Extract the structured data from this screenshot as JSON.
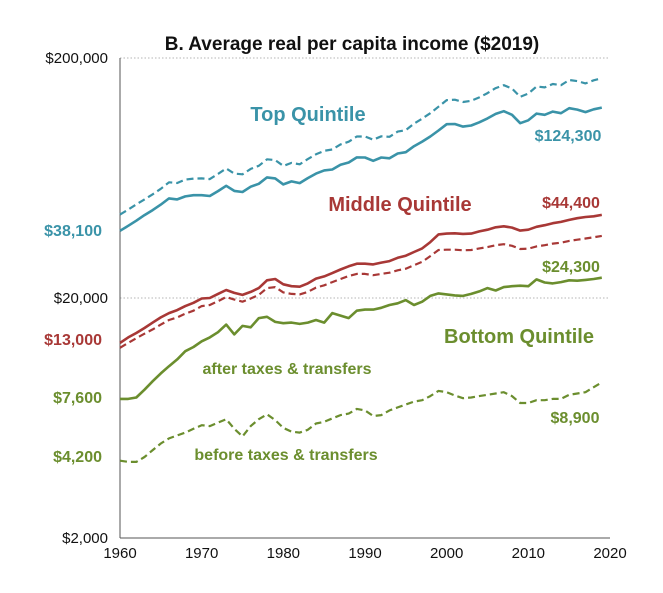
{
  "chart_data": {
    "type": "line",
    "title": "B. Average real per capita income ($2019)",
    "xlabel": "",
    "ylabel": "",
    "y_scale": "log",
    "xlim": [
      1960,
      2020
    ],
    "ylim": [
      2000,
      200000
    ],
    "x_ticks": [
      1960,
      1970,
      1980,
      1990,
      2000,
      2010,
      2020
    ],
    "x_tick_labels": [
      "1960",
      "1970",
      "1980",
      "1990",
      "2000",
      "2010",
      "2020"
    ],
    "y_ticks": [
      2000,
      20000,
      200000
    ],
    "y_tick_labels": [
      "$2,000",
      "$20,000",
      "$200,000"
    ],
    "colors": {
      "top": "#3a93a8",
      "middle": "#a83836",
      "bottom": "#6b8e2e"
    },
    "x": [
      1960,
      1961,
      1962,
      1963,
      1964,
      1965,
      1966,
      1967,
      1968,
      1969,
      1970,
      1971,
      1972,
      1973,
      1974,
      1975,
      1976,
      1977,
      1978,
      1979,
      1980,
      1981,
      1982,
      1983,
      1984,
      1985,
      1986,
      1987,
      1988,
      1989,
      1990,
      1991,
      1992,
      1993,
      1994,
      1995,
      1996,
      1997,
      1998,
      1999,
      2000,
      2001,
      2002,
      2003,
      2004,
      2005,
      2006,
      2007,
      2008,
      2009,
      2010,
      2011,
      2012,
      2013,
      2014,
      2015,
      2016,
      2017,
      2018,
      2019
    ],
    "series": [
      {
        "name": "Top Quintile after taxes & transfers",
        "group": "top",
        "style": "solid",
        "values": [
          38100,
          40000,
          42000,
          44300,
          46500,
          49000,
          52000,
          51500,
          53000,
          53600,
          53600,
          53200,
          55800,
          58700,
          55900,
          55300,
          58200,
          59800,
          63600,
          63000,
          59500,
          61200,
          60200,
          63200,
          66000,
          68000,
          68600,
          71800,
          73400,
          77100,
          77000,
          74600,
          77000,
          76400,
          80000,
          81000,
          85800,
          89700,
          94200,
          99800,
          106000,
          106200,
          103600,
          104700,
          107900,
          112000,
          117000,
          120000,
          116000,
          107000,
          110000,
          117300,
          116000,
          119600,
          117800,
          123500,
          121900,
          119000,
          122300,
          124300
        ]
      },
      {
        "name": "Top Quintile before taxes & transfers",
        "group": "top",
        "style": "dashed",
        "values": [
          44500,
          46700,
          49100,
          51500,
          54100,
          57000,
          60700,
          60300,
          62300,
          62900,
          63000,
          62600,
          65800,
          69300,
          66000,
          65500,
          69000,
          71100,
          75700,
          75100,
          71000,
          73100,
          72100,
          75800,
          79400,
          82100,
          83100,
          87300,
          89600,
          94200,
          94200,
          91300,
          94400,
          93900,
          98700,
          100100,
          106500,
          111800,
          117800,
          125300,
          133600,
          134100,
          131100,
          132600,
          137000,
          142800,
          149800,
          154100,
          149300,
          137900,
          142200,
          152100,
          150900,
          155900,
          154000,
          161900,
          160200,
          156700,
          161500,
          164600
        ]
      },
      {
        "name": "Middle Quintile after taxes & transfers",
        "group": "middle",
        "style": "solid",
        "values": [
          13000,
          13700,
          14300,
          15000,
          15800,
          16600,
          17300,
          17800,
          18500,
          19100,
          19900,
          20000,
          20800,
          21600,
          21000,
          20600,
          21200,
          22000,
          23700,
          24000,
          22800,
          22400,
          22300,
          23000,
          24100,
          24600,
          25400,
          26300,
          27100,
          27800,
          27800,
          27600,
          28100,
          28500,
          29400,
          30000,
          31100,
          32200,
          34200,
          36800,
          37100,
          37200,
          37000,
          37100,
          37900,
          38500,
          39400,
          39800,
          39300,
          38200,
          38500,
          39600,
          40200,
          41000,
          41500,
          42300,
          43000,
          43500,
          43800,
          44400
        ]
      },
      {
        "name": "Middle Quintile before taxes & transfers",
        "group": "middle",
        "style": "dashed",
        "values": [
          12400,
          13000,
          13600,
          14200,
          14800,
          15500,
          16200,
          16600,
          17200,
          17700,
          18500,
          18700,
          19400,
          20200,
          19700,
          19300,
          19900,
          20600,
          22000,
          22200,
          21100,
          20800,
          20700,
          21200,
          22100,
          22600,
          23300,
          24000,
          24700,
          25200,
          25200,
          24900,
          25200,
          25500,
          26100,
          26500,
          27400,
          28300,
          29900,
          31700,
          31800,
          31800,
          31600,
          31700,
          32200,
          32600,
          33200,
          33500,
          33000,
          32000,
          32100,
          32800,
          33200,
          33700,
          34000,
          34600,
          35000,
          35400,
          35800,
          36300
        ]
      },
      {
        "name": "Bottom Quintile after taxes & transfers",
        "group": "bottom",
        "style": "solid",
        "values": [
          7600,
          7600,
          7700,
          8300,
          9000,
          9700,
          10400,
          11100,
          12000,
          12500,
          13200,
          13700,
          14400,
          15500,
          14100,
          15300,
          15100,
          16500,
          16700,
          15900,
          15700,
          15800,
          15600,
          15800,
          16200,
          15800,
          17300,
          16900,
          16500,
          17700,
          17900,
          17900,
          18200,
          18700,
          19000,
          19600,
          18700,
          19300,
          20400,
          20900,
          20700,
          20500,
          20400,
          20800,
          21300,
          22000,
          21500,
          22200,
          22400,
          22500,
          22400,
          23900,
          23200,
          23000,
          23300,
          23700,
          23600,
          23800,
          24000,
          24300
        ]
      },
      {
        "name": "Bottom Quintile before taxes & transfers",
        "group": "bottom",
        "style": "dashed",
        "values": [
          4200,
          4150,
          4150,
          4350,
          4650,
          4950,
          5200,
          5350,
          5500,
          5700,
          5900,
          5850,
          6050,
          6250,
          5700,
          5300,
          5850,
          6250,
          6550,
          6200,
          5750,
          5550,
          5500,
          5650,
          6000,
          6100,
          6300,
          6500,
          6600,
          6900,
          6800,
          6450,
          6500,
          6800,
          7000,
          7200,
          7400,
          7500,
          7800,
          8200,
          8100,
          7850,
          7650,
          7700,
          7800,
          7900,
          8000,
          8100,
          7800,
          7300,
          7300,
          7500,
          7500,
          7600,
          7600,
          7900,
          8000,
          8100,
          8500,
          8900
        ]
      }
    ],
    "annotations": {
      "top_label": "Top Quintile",
      "middle_label": "Middle Quintile",
      "bottom_label": "Bottom Quintile",
      "after_label": "after taxes & transfers",
      "before_label": "before taxes & transfers",
      "top_start": "$38,100",
      "middle_start": "$13,000",
      "bottom_after_start": "$7,600",
      "bottom_before_start": "$4,200",
      "top_end": "$124,300",
      "middle_end": "$44,400",
      "bottom_after_end": "$24,300",
      "bottom_before_end": "$8,900"
    }
  }
}
